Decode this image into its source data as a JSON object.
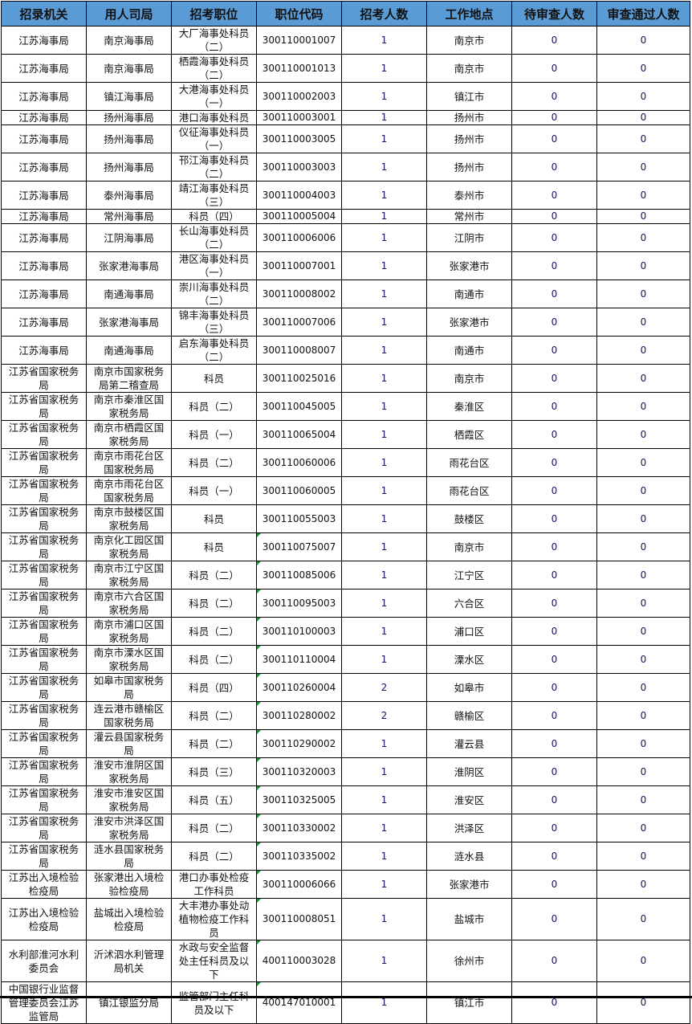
{
  "table": {
    "header_color": "#5b9bd5",
    "columns": [
      "招录机关",
      "用人司局",
      "招考职位",
      "职位代码",
      "招考人数",
      "工作地点",
      "待审查人数",
      "审查通过人数"
    ],
    "rows": [
      [
        "江苏海事局",
        "南京海事局",
        "大厂海事处科员（二）",
        "300110001007",
        "1",
        "南京市",
        "0",
        "0"
      ],
      [
        "江苏海事局",
        "南京海事局",
        "栖霞海事处科员（二）",
        "300110001013",
        "1",
        "南京市",
        "0",
        "0"
      ],
      [
        "江苏海事局",
        "镇江海事局",
        "大港海事处科员（一）",
        "300110002003",
        "1",
        "镇江市",
        "0",
        "0"
      ],
      [
        "江苏海事局",
        "扬州海事局",
        "港口海事处科员",
        "300110003001",
        "1",
        "扬州市",
        "0",
        "0"
      ],
      [
        "江苏海事局",
        "扬州海事局",
        "仪征海事处科员（一）",
        "300110003005",
        "1",
        "扬州市",
        "0",
        "0"
      ],
      [
        "江苏海事局",
        "扬州海事局",
        "邗江海事处科员（二）",
        "300110003003",
        "1",
        "扬州市",
        "0",
        "0"
      ],
      [
        "江苏海事局",
        "泰州海事局",
        "靖江海事处科员（三）",
        "300110004003",
        "1",
        "泰州市",
        "0",
        "0"
      ],
      [
        "江苏海事局",
        "常州海事局",
        "科员（四）",
        "300110005004",
        "1",
        "常州市",
        "0",
        "0"
      ],
      [
        "江苏海事局",
        "江阴海事局",
        "长山海事处科员（二）",
        "300110006006",
        "1",
        "江阴市",
        "0",
        "0"
      ],
      [
        "江苏海事局",
        "张家港海事局",
        "港区海事处科员（一）",
        "300110007001",
        "1",
        "张家港市",
        "0",
        "0"
      ],
      [
        "江苏海事局",
        "南通海事局",
        "崇川海事处科员（二）",
        "300110008002",
        "1",
        "南通市",
        "0",
        "0"
      ],
      [
        "江苏海事局",
        "张家港海事局",
        "锦丰海事处科员（三）",
        "300110007006",
        "1",
        "张家港市",
        "0",
        "0"
      ],
      [
        "江苏海事局",
        "南通海事局",
        "启东海事处科员（二）",
        "300110008007",
        "1",
        "南通市",
        "0",
        "0"
      ],
      [
        "江苏省国家税务局",
        "南京市国家税务局第二稽查局",
        "科员",
        "300110025016",
        "1",
        "南京市",
        "0",
        "0"
      ],
      [
        "江苏省国家税务局",
        "南京市秦淮区国家税务局",
        "科员（二）",
        "300110045005",
        "1",
        "秦淮区",
        "0",
        "0"
      ],
      [
        "江苏省国家税务局",
        "南京市栖霞区国家税务局",
        "科员（一）",
        "300110065004",
        "1",
        "栖霞区",
        "0",
        "0"
      ],
      [
        "江苏省国家税务局",
        "南京市雨花台区国家税务局",
        "科员（二）",
        "300110060006",
        "1",
        "雨花台区",
        "0",
        "0"
      ],
      [
        "江苏省国家税务局",
        "南京市雨花台区国家税务局",
        "科员（一）",
        "300110060005",
        "1",
        "雨花台区",
        "0",
        "0"
      ],
      [
        "江苏省国家税务局",
        "南京市鼓楼区国家税务局",
        "科员",
        "300110055003",
        "1",
        "鼓楼区",
        "0",
        "0"
      ],
      [
        "江苏省国家税务局",
        "南京化工园区国家税务局",
        "科员",
        "300110075007",
        "1",
        "南京市",
        "0",
        "0"
      ],
      [
        "江苏省国家税务局",
        "南京市江宁区国家税务局",
        "科员（二）",
        "300110085006",
        "1",
        "江宁区",
        "0",
        "0"
      ],
      [
        "江苏省国家税务局",
        "南京市六合区国家税务局",
        "科员（二）",
        "300110095003",
        "1",
        "六合区",
        "0",
        "0"
      ],
      [
        "江苏省国家税务局",
        "南京市浦口区国家税务局",
        "科员（二）",
        "300110100003",
        "1",
        "浦口区",
        "0",
        "0"
      ],
      [
        "江苏省国家税务局",
        "南京市溧水区国家税务局",
        "科员（二）",
        "300110110004",
        "1",
        "溧水区",
        "0",
        "0"
      ],
      [
        "江苏省国家税务局",
        "如皋市国家税务局",
        "科员（四）",
        "300110260004",
        "2",
        "如皋市",
        "0",
        "0"
      ],
      [
        "江苏省国家税务局",
        "连云港市赣榆区国家税务局",
        "科员（二）",
        "300110280002",
        "2",
        "赣榆区",
        "0",
        "0"
      ],
      [
        "江苏省国家税务局",
        "灌云县国家税务局",
        "科员（二）",
        "300110290002",
        "1",
        "灌云县",
        "0",
        "0"
      ],
      [
        "江苏省国家税务局",
        "淮安市淮阴区国家税务局",
        "科员（三）",
        "300110320003",
        "1",
        "淮阴区",
        "0",
        "0"
      ],
      [
        "江苏省国家税务局",
        "淮安市淮安区国家税务局",
        "科员（五）",
        "300110325005",
        "1",
        "淮安区",
        "0",
        "0"
      ],
      [
        "江苏省国家税务局",
        "淮安市洪泽区国家税务局",
        "科员（二）",
        "300110330002",
        "1",
        "洪泽区",
        "0",
        "0"
      ],
      [
        "江苏省国家税务局",
        "涟水县国家税务局",
        "科员（二）",
        "300110335002",
        "1",
        "涟水县",
        "0",
        "0"
      ],
      [
        "江苏出入境检验检疫局",
        "张家港出入境检验检疫局",
        "港口办事处检疫工作科员",
        "300110006066",
        "1",
        "张家港市",
        "0",
        "0"
      ],
      [
        "江苏出入境检验检疫局",
        "盐城出入境检验检疫局",
        "大丰港办事处动植物检疫工作科员",
        "300110008051",
        "1",
        "盐城市",
        "0",
        "0"
      ],
      [
        "水利部淮河水利委员会",
        "沂沭泗水利管理局机关",
        "水政与安全监督处主任科员及以下",
        "400110003028",
        "1",
        "徐州市",
        "0",
        "0"
      ],
      [
        "中国银行业监督管理委员会江苏监管局",
        "镇江银监分局",
        "监管部门主任科员及以下",
        "400147010001",
        "1",
        "镇江市",
        "0",
        "0"
      ]
    ]
  }
}
